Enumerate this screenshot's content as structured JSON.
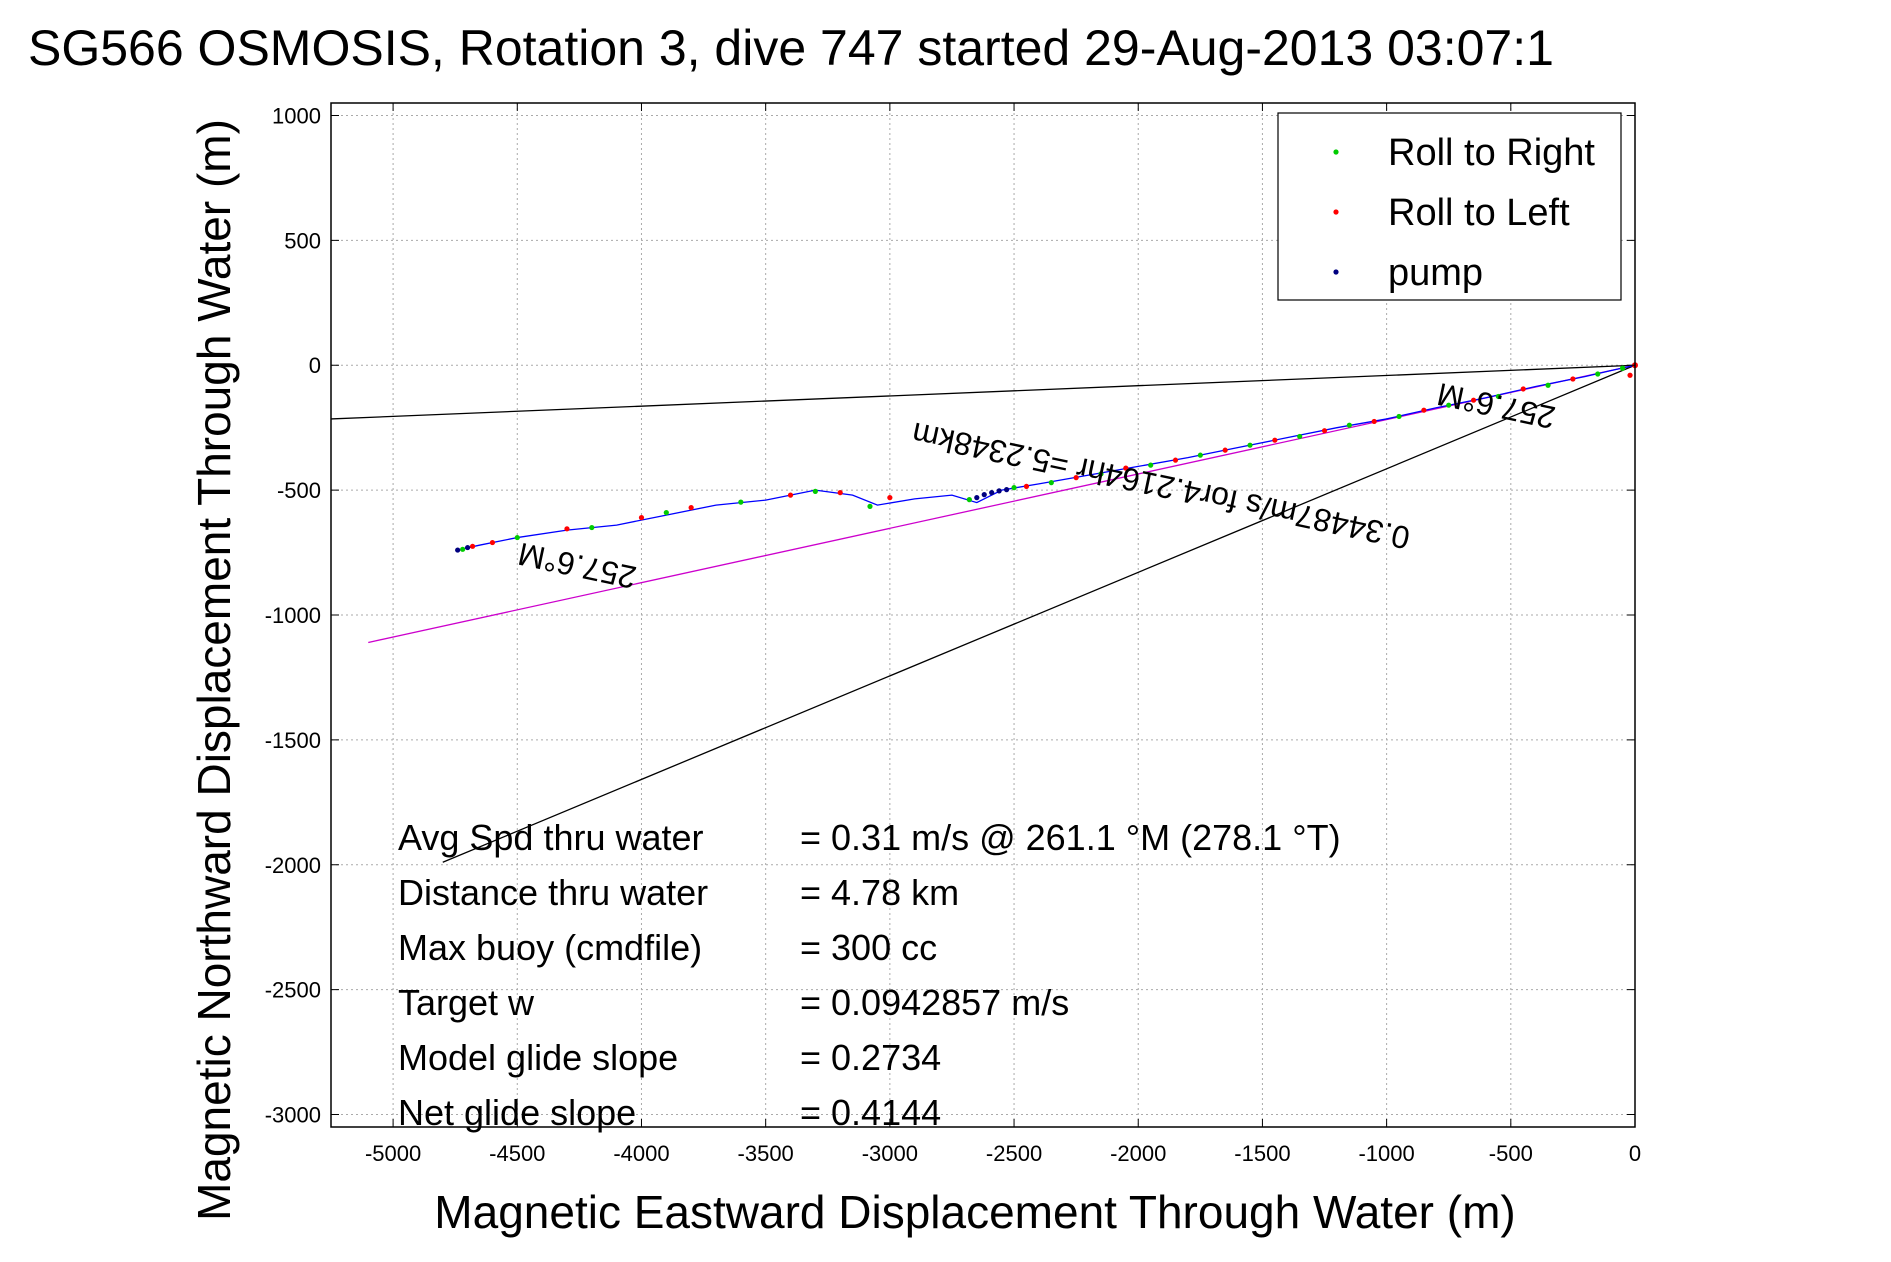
{
  "chart_data": {
    "type": "line",
    "title": "SG566 OSMOSIS, Rotation 3, dive 747 started 29-Aug-2013 03:07:1",
    "xlabel": "Magnetic Eastward Displacement Through Water (m)",
    "ylabel": "Magnetic Northward Displacement Through Water (m)",
    "xlim": [
      -5250,
      0
    ],
    "ylim": [
      -3050,
      1050
    ],
    "grid": true,
    "xticks": [
      -5000,
      -4500,
      -4000,
      -3500,
      -3000,
      -2500,
      -2000,
      -1500,
      -1000,
      -500,
      0
    ],
    "yticks": [
      1000,
      500,
      0,
      -500,
      -1000,
      -1500,
      -2000,
      -2500,
      -3000
    ],
    "xtick_labels": [
      "-5000",
      "-4500",
      "-4000",
      "-3500",
      "-3000",
      "-2500",
      "-2000",
      "-1500",
      "-1000",
      "-500",
      "0"
    ],
    "ytick_labels": [
      "1000",
      "500",
      "0",
      "-500",
      "-1000",
      "-1500",
      "-2000",
      "-2500",
      "-3000"
    ],
    "legend": {
      "position": "top-right",
      "entries": [
        {
          "label": "Roll to Right",
          "color": "#00cc00"
        },
        {
          "label": "Roll to Left",
          "color": "#ff0000"
        },
        {
          "label": "pump",
          "color": "#000080"
        }
      ]
    },
    "lines": [
      {
        "role": "bounding-line-upper",
        "color": "#000000",
        "x": [
          0,
          -5250
        ],
        "y": [
          0,
          -215
        ]
      },
      {
        "role": "bounding-line-lower",
        "color": "#000000",
        "x": [
          0,
          -4800
        ],
        "y": [
          0,
          -1990
        ]
      },
      {
        "role": "course-line",
        "color": "#cc00cc",
        "x": [
          0,
          -5100
        ],
        "y": [
          0,
          -1110
        ]
      }
    ],
    "track": {
      "name": "",
      "color": "#0000ff",
      "x": [
        0,
        -100,
        -200,
        -400,
        -600,
        -800,
        -1000,
        -1200,
        -1400,
        -1600,
        -1800,
        -2000,
        -2200,
        -2400,
        -2550,
        -2650,
        -2750,
        -2900,
        -3050,
        -3150,
        -3300,
        -3500,
        -3700,
        -3900,
        -4100,
        -4300,
        -4500,
        -4650,
        -4720
      ],
      "y": [
        0,
        -22,
        -45,
        -85,
        -130,
        -170,
        -215,
        -250,
        -290,
        -330,
        -370,
        -405,
        -440,
        -475,
        -500,
        -550,
        -520,
        -535,
        -560,
        -520,
        -500,
        -540,
        -560,
        -600,
        -640,
        -660,
        -690,
        -720,
        -735
      ]
    },
    "markers": {
      "roll_right": {
        "color": "#00cc00",
        "x": [
          -50,
          -150,
          -350,
          -550,
          -750,
          -950,
          -1150,
          -1350,
          -1550,
          -1750,
          -1950,
          -2150,
          -2350,
          -2500,
          -3080,
          -3300,
          -3600,
          -3900,
          -4200,
          -4500,
          -4720,
          -2680
        ],
        "y": [
          -12,
          -35,
          -80,
          -125,
          -160,
          -205,
          -240,
          -285,
          -320,
          -360,
          -400,
          -435,
          -470,
          -490,
          -565,
          -505,
          -548,
          -590,
          -650,
          -690,
          -737,
          -538
        ]
      },
      "roll_left": {
        "color": "#ff0000",
        "x": [
          -20,
          -250,
          -450,
          -650,
          -850,
          -1050,
          -1250,
          -1450,
          -1650,
          -1850,
          -2050,
          -2250,
          -2450,
          -3000,
          -3200,
          -3400,
          -3800,
          -4000,
          -4300,
          -4600,
          -4680
        ],
        "y": [
          -40,
          -55,
          -95,
          -140,
          -180,
          -225,
          -262,
          -300,
          -340,
          -380,
          -412,
          -450,
          -485,
          -530,
          -510,
          -520,
          -570,
          -610,
          -655,
          -710,
          -725
        ]
      },
      "pump": {
        "color": "#000080",
        "x": [
          -2530,
          -2560,
          -2590,
          -2620,
          -2650,
          -4700,
          -4740
        ],
        "y": [
          -498,
          -503,
          -510,
          -518,
          -530,
          -730,
          -740
        ]
      }
    },
    "annotations": [
      {
        "text": "257.6°M",
        "x": -550,
        "y": -120,
        "rotation_deg": 192
      },
      {
        "text": "0.34487m/s for4.2164hr =5.2348km",
        "x": -1900,
        "y": -440,
        "rotation_deg": 192
      },
      {
        "text": "257.6°M",
        "x": -4250,
        "y": -760,
        "rotation_deg": 192
      }
    ],
    "stats": [
      {
        "label": "Avg Spd thru water",
        "value": "=  0.31 m/s @ 261.1 °M (278.1 °T)"
      },
      {
        "label": "Distance thru water",
        "value": "=  4.78 km"
      },
      {
        "label": "Max buoy (cmdfile)",
        "value": "= 300 cc"
      },
      {
        "label": "Target w",
        "value": "= 0.0942857 m/s"
      },
      {
        "label": "Model glide slope",
        "value": "= 0.2734"
      },
      {
        "label": "Net glide slope",
        "value": "= 0.4144"
      }
    ]
  }
}
